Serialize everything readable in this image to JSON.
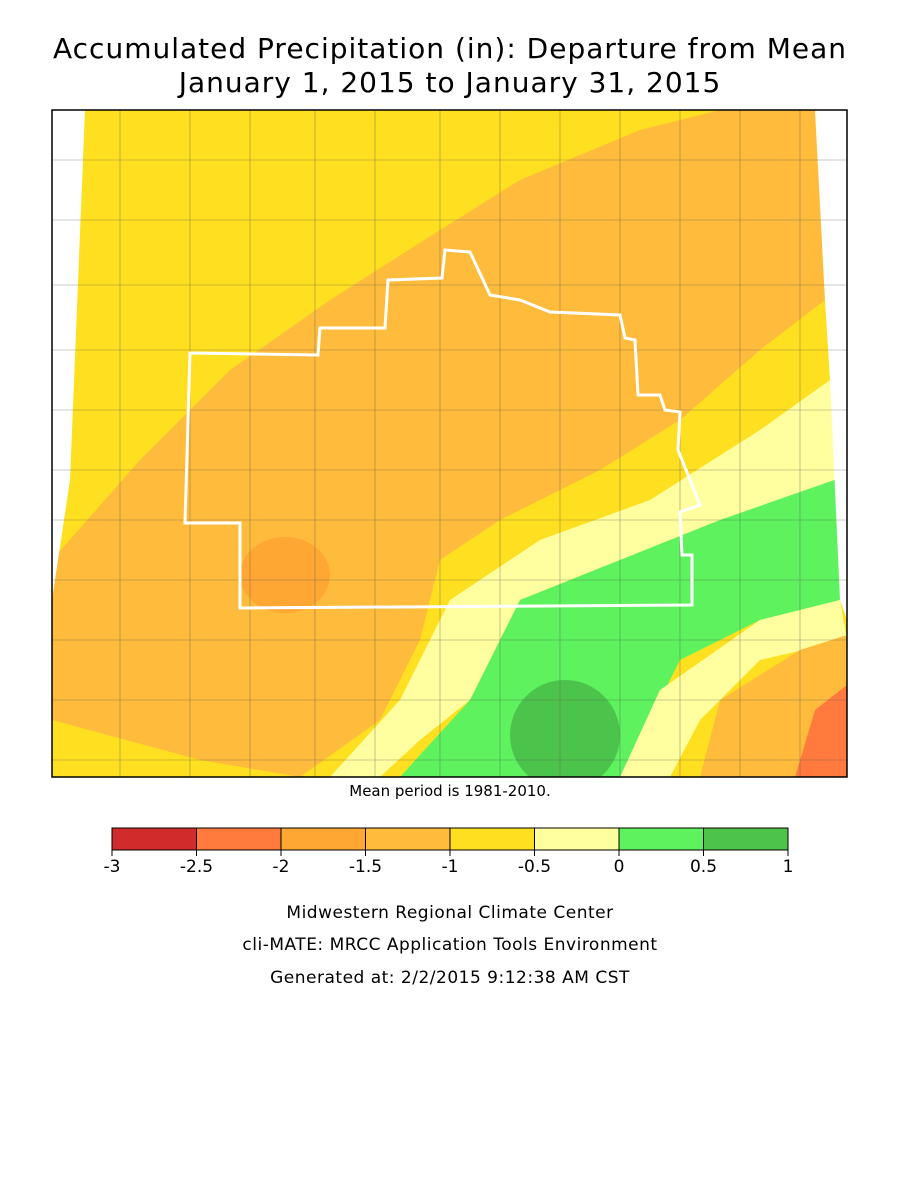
{
  "header": {
    "title": [
      "Accumulated Precipitation (in): Departure from Mean",
      "January 1, 2015 to January 31, 2015"
    ]
  },
  "map": {
    "note": "Mean period is 1981-2010."
  },
  "legend": {
    "ticks": [
      -3,
      -2.5,
      -2,
      -1.5,
      -1,
      -0.5,
      0,
      0.5,
      1
    ],
    "colors": [
      "#d22b2b",
      "#ff7a3c",
      "#ffa633",
      "#ffbc3c",
      "#ffe020",
      "#ffffa0",
      "#5ef25e",
      "#4cc44c"
    ]
  },
  "credits": [
    "Midwestern Regional Climate Center",
    "cli-MATE: MRCC Application Tools Environment",
    "Generated at: 2/2/2015 9:12:38 AM CST"
  ]
}
